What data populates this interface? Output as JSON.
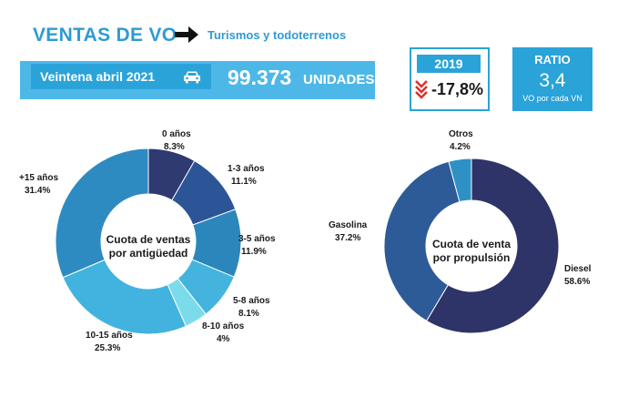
{
  "header": {
    "title": "VENTAS DE VO",
    "subtitle": "Turismos y todoterrenos"
  },
  "banner": {
    "label": "Veintena abril 2021",
    "value": "99.373",
    "unit": "UNIDADES"
  },
  "comparison": {
    "year": "2019",
    "change": "-17,8%"
  },
  "ratio": {
    "label": "RATIO",
    "value": "3,4",
    "note": "VO por cada VN"
  },
  "colors": {
    "accent": "#2aa3d9",
    "title": "#2e9bd4"
  },
  "icons": {
    "arrow": "arrow-right-icon",
    "car": "car-icon",
    "down": "chevron-down-icon"
  },
  "chart_data": [
    {
      "type": "pie",
      "center_text": [
        "Cuota de ventas",
        "por antigüedad"
      ],
      "categories": [
        "0 años",
        "1-3 años",
        "3-5 años",
        "5-8 años",
        "8-10 años",
        "10-15 años",
        "+15 años"
      ],
      "values": [
        8.3,
        11.1,
        11.9,
        8.1,
        4,
        25.3,
        31.4
      ],
      "value_labels": [
        "8.3%",
        "11.1%",
        "11.9%",
        "8.1%",
        "4%",
        "25.3%",
        "31.4%"
      ],
      "colors": [
        "#2e3a70",
        "#2b5597",
        "#2b87bb",
        "#44b4df",
        "#7bdbeb",
        "#41b3de",
        "#2e8bc2"
      ]
    },
    {
      "type": "pie",
      "center_text": [
        "Cuota de venta",
        "por propulsión"
      ],
      "categories": [
        "Diesel",
        "Gasolina",
        "Otros"
      ],
      "values": [
        58.6,
        37.2,
        4.2
      ],
      "value_labels": [
        "58.6%",
        "37.2%",
        "4.2%"
      ],
      "colors": [
        "#2e3368",
        "#2d5b97",
        "#2e91c6"
      ]
    }
  ]
}
